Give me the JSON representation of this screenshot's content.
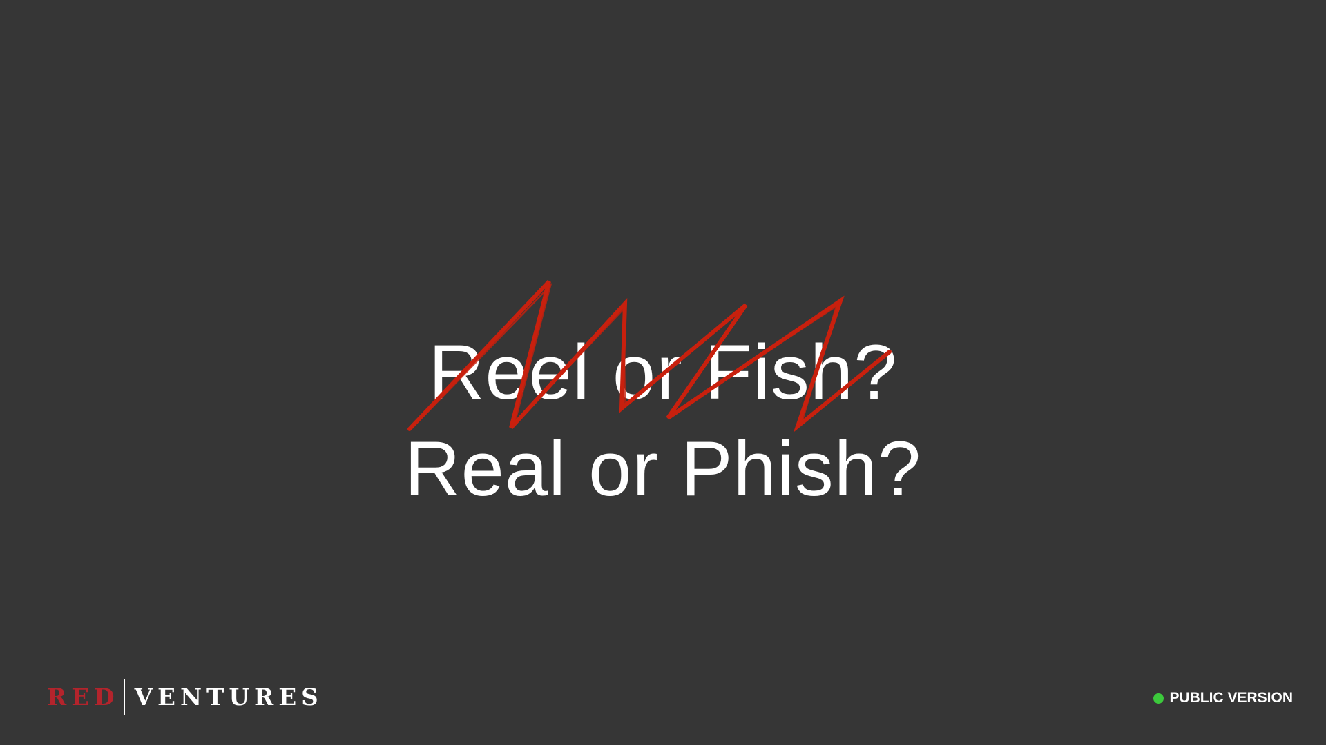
{
  "slide": {
    "line1": "Reel or Fish?",
    "line2": "Real or Phish?"
  },
  "logo": {
    "part1": "RED",
    "part2": "VENTURES"
  },
  "badge": {
    "label": "PUBLIC VERSION"
  },
  "colors": {
    "background": "#363636",
    "text": "#ffffff",
    "scribble": "#c8200e",
    "logo_red": "#b3242c",
    "status_dot": "#3cc93c"
  },
  "icons": {
    "strike": "scribble-strikethrough-icon",
    "status": "status-dot-icon"
  }
}
